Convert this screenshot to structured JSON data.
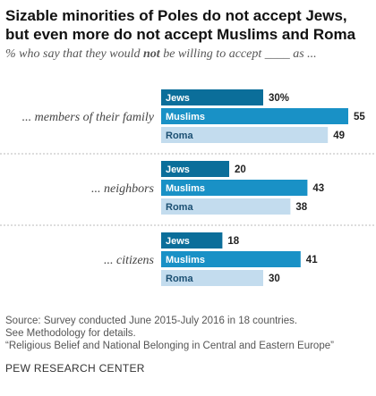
{
  "title": "Sizable minorities of Poles do not accept Jews, but even more do not accept Muslims and Roma",
  "subtitle_before": "% who say that they would ",
  "subtitle_bold": "not",
  "subtitle_after": " be willing to accept ____ as ...",
  "footer": {
    "source": "Source: Survey conducted June 2015-July 2016 in 18 countries.",
    "methodology": "See Methodology for details.",
    "report": "“Religious Belief and National Belonging in Central and Eastern Europe”"
  },
  "brand": "PEW RESEARCH CENTER",
  "chart_data": {
    "type": "bar",
    "orientation": "horizontal",
    "categories": [
      "... members of their family",
      "... neighbors",
      "... citizens"
    ],
    "series": [
      {
        "name": "Jews",
        "values": [
          30,
          20,
          18
        ],
        "color": "#0b6e9a"
      },
      {
        "name": "Muslims",
        "values": [
          55,
          43,
          41
        ],
        "color": "#1991c6"
      },
      {
        "name": "Roma",
        "values": [
          49,
          38,
          30
        ],
        "color": "#c3dcee"
      }
    ],
    "value_labels": [
      [
        "30%",
        "20",
        "18"
      ],
      [
        "55",
        "43",
        "41"
      ],
      [
        "49",
        "38",
        "30"
      ]
    ],
    "xlim": [
      0,
      60
    ],
    "grid": false,
    "colors": {
      "separator": "#bbbbbb",
      "value_text": "#222222"
    }
  }
}
